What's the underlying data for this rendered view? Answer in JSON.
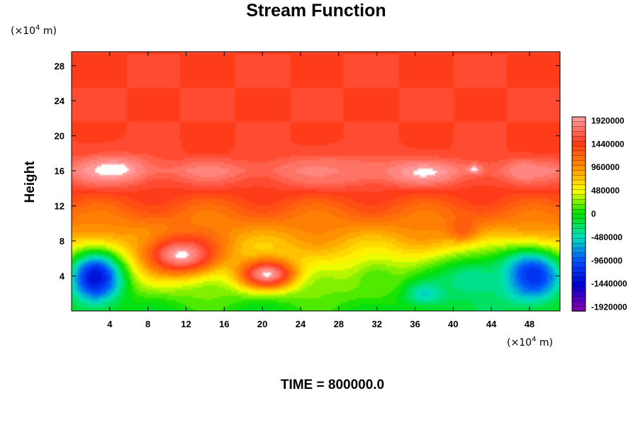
{
  "chart_data": {
    "type": "heatmap",
    "title": "Stream Function",
    "ylabel": "Height",
    "xlabel": "",
    "x_unit_prefix": "(×10",
    "x_unit_exp": "4",
    "x_unit_suffix": " m)",
    "y_unit_prefix": "(×10",
    "y_unit_exp": "4",
    "y_unit_suffix": " m)",
    "xlim": [
      0,
      51.2
    ],
    "ylim": [
      0,
      29.6
    ],
    "x_ticks": [
      4,
      8,
      12,
      16,
      20,
      24,
      28,
      32,
      36,
      40,
      44,
      48
    ],
    "y_ticks": [
      4,
      8,
      12,
      16,
      20,
      24,
      28
    ],
    "colorbar": {
      "min": -2000000,
      "max": 2000000,
      "labels": [
        1920000,
        1440000,
        960000,
        480000,
        0,
        -480000,
        -960000,
        -1440000,
        -1920000
      ],
      "colors_high_to_low": [
        "#ff9a9a",
        "#ff3a1a",
        "#ff8c00",
        "#ffff00",
        "#00e000",
        "#00e0c0",
        "#0050ff",
        "#0000d0",
        "#8000b0"
      ]
    },
    "background_value": 1500000,
    "features": [
      {
        "x": 4.5,
        "y": 16.2,
        "value": 2000000,
        "sx": 3.6,
        "sy": 1.6
      },
      {
        "x": 11.5,
        "y": 6.4,
        "value": 2000000,
        "sx": 3.8,
        "sy": 2.2
      },
      {
        "x": 20.5,
        "y": 4.2,
        "value": 2000000,
        "sx": 2.8,
        "sy": 1.6
      },
      {
        "x": 36.5,
        "y": 15.8,
        "value": 2000000,
        "sx": 3.5,
        "sy": 1.2
      },
      {
        "x": 42.2,
        "y": 16.2,
        "value": 2000000,
        "sx": 0.8,
        "sy": 0.6
      },
      {
        "x": 47.3,
        "y": 16.0,
        "value": 1900000,
        "sx": 1.3,
        "sy": 1.0
      },
      {
        "x": 28.0,
        "y": 16.0,
        "value": 1800000,
        "sx": 6.0,
        "sy": 1.6
      },
      {
        "x": 2.5,
        "y": 3.8,
        "value": -1400000,
        "sx": 2.8,
        "sy": 3.0
      },
      {
        "x": 48.0,
        "y": 4.0,
        "value": -1400000,
        "sx": 3.5,
        "sy": 3.0
      },
      {
        "x": 37.0,
        "y": 2.0,
        "value": -600000,
        "sx": 2.5,
        "sy": 1.5
      },
      {
        "x": 42.0,
        "y": 3.5,
        "value": -400000,
        "sx": 5.0,
        "sy": 3.0
      },
      {
        "x": 32.0,
        "y": 3.5,
        "value": 100000,
        "sx": 3.0,
        "sy": 2.5
      },
      {
        "x": 41.0,
        "y": 9.5,
        "value": 1300000,
        "sx": 1.6,
        "sy": 1.4
      }
    ],
    "annotation": "TIME = 800000.0"
  }
}
